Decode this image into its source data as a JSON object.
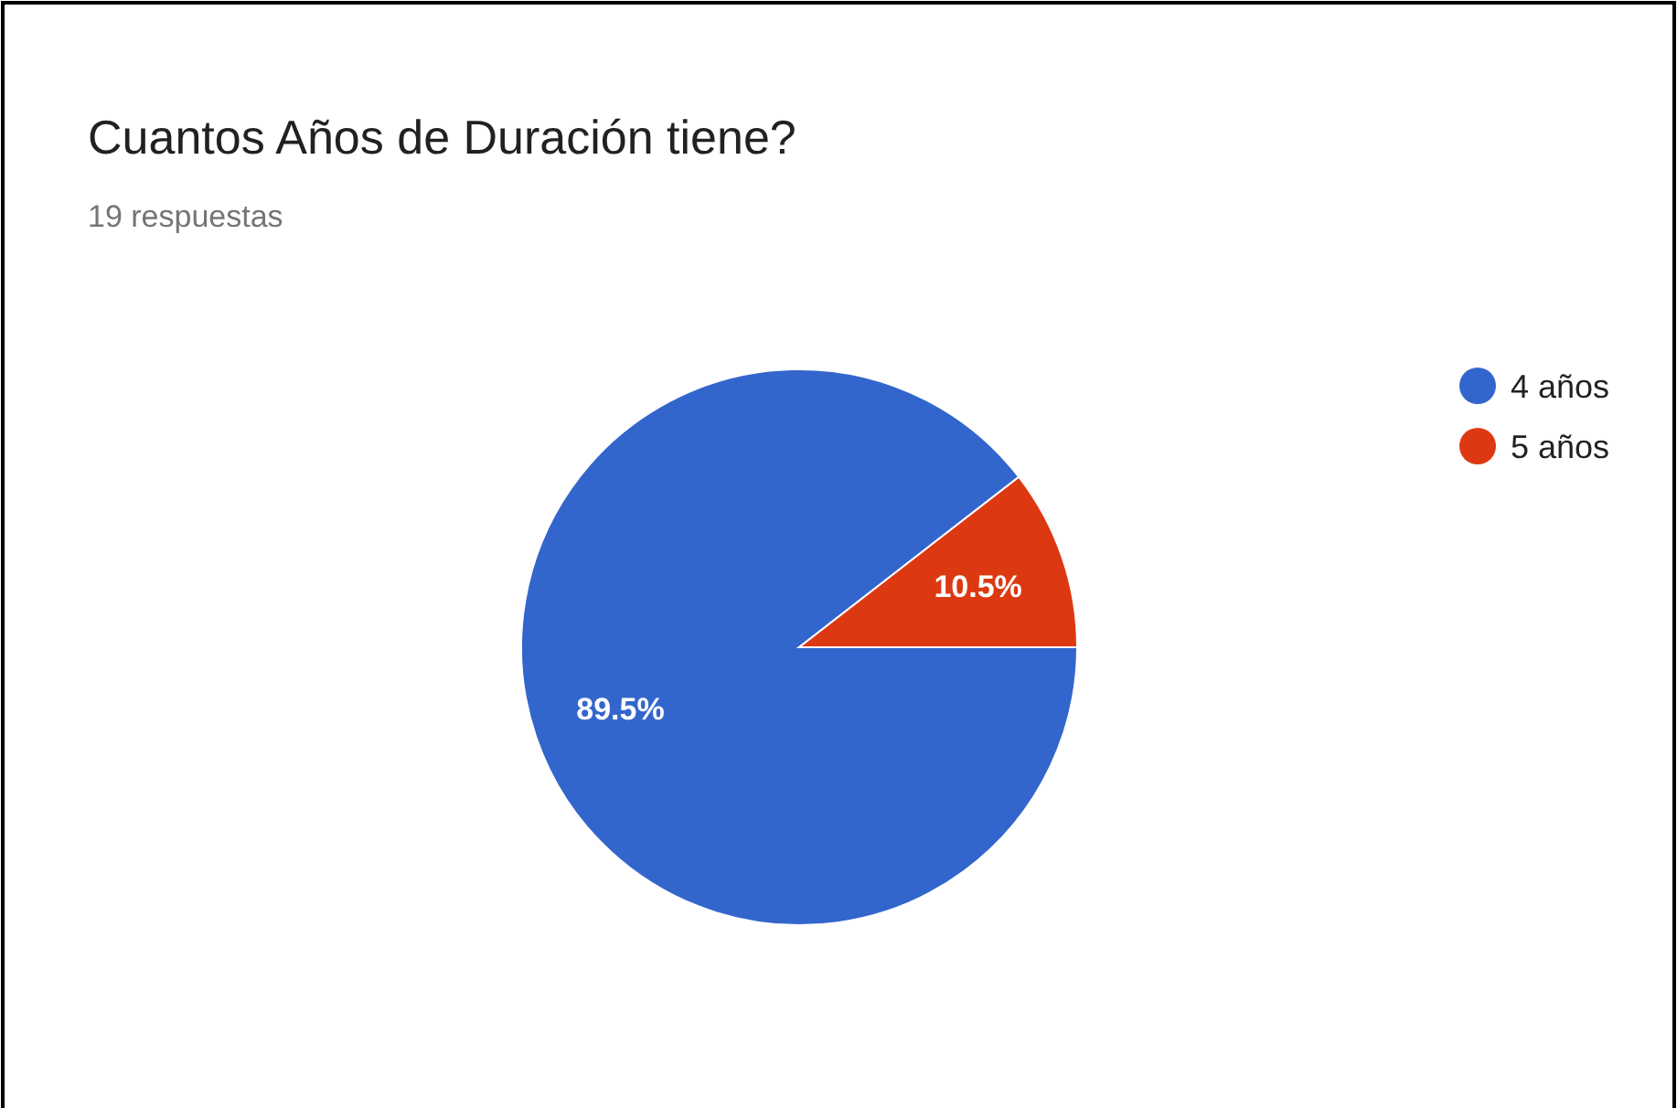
{
  "chart_data": {
    "type": "pie",
    "title": "Cuantos Años de Duración tiene?",
    "subtitle": "19 respuestas",
    "categories": [
      "4 años",
      "5 años"
    ],
    "values": [
      89.5,
      10.5
    ],
    "colors": [
      "#3366cc",
      "#dc3912"
    ],
    "value_labels": [
      "89.5%",
      "10.5%"
    ],
    "legend": "right"
  }
}
